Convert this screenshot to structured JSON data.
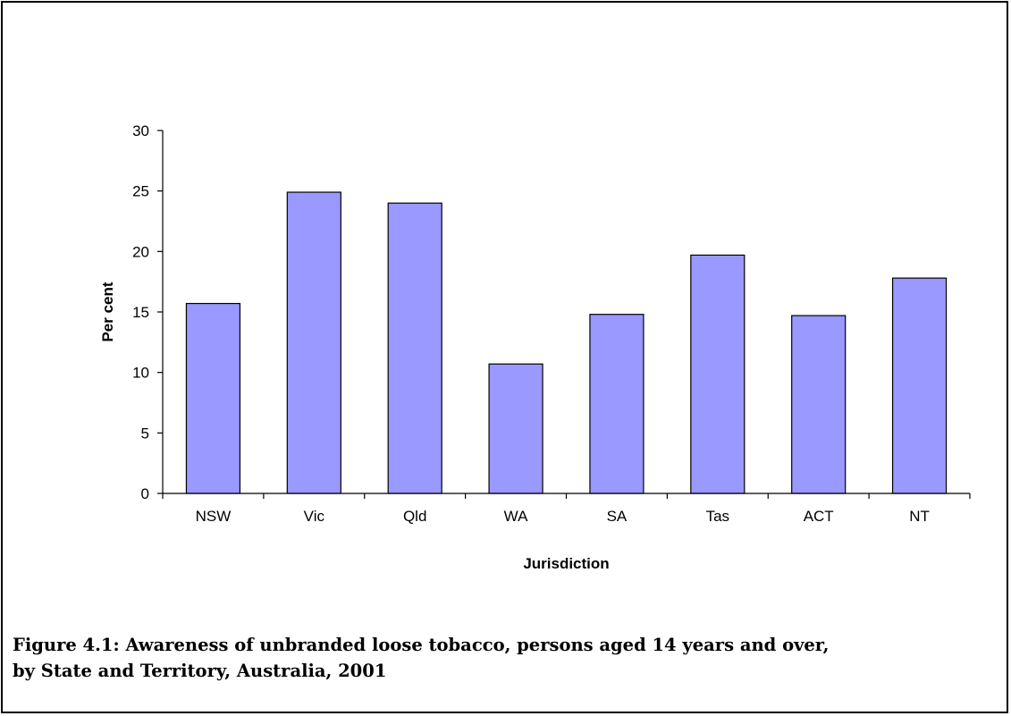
{
  "chart_data": {
    "type": "bar",
    "categories": [
      "NSW",
      "Vic",
      "Qld",
      "WA",
      "SA",
      "Tas",
      "ACT",
      "NT"
    ],
    "values": [
      15.7,
      24.9,
      24.0,
      10.7,
      14.8,
      19.7,
      14.7,
      17.8
    ],
    "xlabel": "Jurisdiction",
    "ylabel": "Per cent",
    "ylim": [
      0,
      30
    ],
    "yticks": [
      0,
      5,
      10,
      15,
      20,
      25,
      30
    ],
    "bar_color": "#9999ff",
    "grid": false,
    "legend": "none"
  },
  "caption": {
    "line1": "Figure 4.1: Awareness of unbranded loose tobacco, persons aged 14 years and over,",
    "line2": "by State and Territory, Australia, 2001"
  }
}
